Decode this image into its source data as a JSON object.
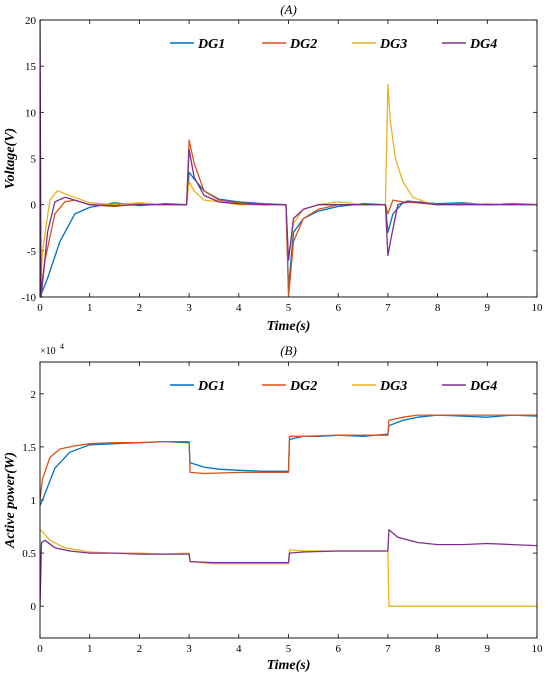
{
  "chart_data": [
    {
      "type": "line",
      "title": "(A)",
      "xlabel": "Time(s)",
      "ylabel": "Voltage(V)",
      "xlim": [
        0,
        10
      ],
      "ylim": [
        -10,
        20
      ],
      "xticks": [
        "0",
        "1",
        "2",
        "3",
        "4",
        "5",
        "6",
        "7",
        "8",
        "9",
        "10"
      ],
      "yticks": [
        "-10",
        "-5",
        "0",
        "5",
        "10",
        "15",
        "20"
      ],
      "legend_position": "top-right",
      "series": [
        {
          "name": "DG1",
          "color": "#0072BD",
          "x": [
            0,
            0.15,
            0.4,
            0.7,
            1.0,
            1.5,
            2.0,
            2.5,
            2.95,
            3.0,
            3.1,
            3.3,
            3.6,
            4.0,
            4.5,
            4.95,
            5.0,
            5.1,
            5.3,
            5.6,
            6.0,
            6.5,
            6.95,
            7.0,
            7.1,
            7.3,
            7.6,
            8.0,
            8.5,
            9.0,
            9.5,
            10.0
          ],
          "values": [
            -10,
            -8,
            -4,
            -1,
            -0.3,
            0.2,
            -0.1,
            0.1,
            0,
            3.5,
            2.8,
            1.5,
            0.6,
            0.3,
            0.1,
            0,
            -9,
            -3,
            -1.5,
            -0.7,
            -0.2,
            0.1,
            0,
            -3,
            -1,
            0.2,
            0.3,
            0.1,
            0.2,
            0,
            0.1,
            0
          ]
        },
        {
          "name": "DG2",
          "color": "#D95319",
          "x": [
            0,
            0.1,
            0.3,
            0.5,
            0.7,
            1.0,
            1.5,
            2.0,
            2.5,
            2.95,
            3.0,
            3.1,
            3.3,
            3.6,
            4.0,
            4.5,
            4.95,
            5.0,
            5.1,
            5.3,
            5.6,
            6.0,
            6.5,
            6.95,
            7.0,
            7.1,
            7.3,
            7.6,
            8.0,
            8.5,
            9.0,
            9.5,
            10.0
          ],
          "values": [
            -10,
            -6,
            -1,
            0.3,
            0.5,
            0,
            -0.2,
            0.1,
            0,
            0,
            7,
            4.5,
            1.5,
            0.5,
            0.2,
            0,
            0,
            -10,
            -4,
            -1.5,
            -0.5,
            0,
            0,
            0,
            -1,
            0.5,
            0.3,
            0.2,
            0,
            0.1,
            0,
            0.1,
            0
          ]
        },
        {
          "name": "DG3",
          "color": "#EDB120",
          "x": [
            0,
            0.05,
            0.2,
            0.35,
            0.5,
            0.7,
            1.0,
            1.5,
            2.0,
            2.5,
            2.95,
            3.0,
            3.1,
            3.3,
            3.6,
            4.0,
            4.5,
            4.95,
            5.0,
            5.1,
            5.3,
            5.6,
            6.0,
            6.5,
            6.95,
            7.0,
            7.05,
            7.15,
            7.3,
            7.5,
            7.8,
            8.0,
            8.5,
            9.0,
            9.5,
            10.0
          ],
          "values": [
            -10,
            -5,
            0.5,
            1.5,
            1.2,
            0.8,
            0.2,
            0,
            0.2,
            0,
            0,
            2.5,
            1.5,
            0.5,
            0.3,
            0,
            0,
            0,
            -6,
            -2,
            -0.5,
            0,
            0.3,
            0,
            0,
            13,
            9,
            5,
            2.5,
            0.8,
            0.2,
            0,
            0,
            0.1,
            0,
            0
          ]
        },
        {
          "name": "DG4",
          "color": "#7E2F8E",
          "x": [
            0,
            0.02,
            0.06,
            0.15,
            0.3,
            0.5,
            0.7,
            1.0,
            1.5,
            2.0,
            2.5,
            2.95,
            3.0,
            3.1,
            3.3,
            3.6,
            4.0,
            4.5,
            4.95,
            5.0,
            5.1,
            5.3,
            5.6,
            6.0,
            6.5,
            6.95,
            7.0,
            7.05,
            7.2,
            7.4,
            7.7,
            8.0,
            8.5,
            9.0,
            9.5,
            10.0
          ],
          "values": [
            20,
            -10,
            -8,
            -3,
            0.3,
            0.8,
            0.5,
            0,
            -0.1,
            0,
            0,
            0,
            6,
            3,
            1,
            0.3,
            0.1,
            0,
            0,
            -6,
            -1.5,
            -0.5,
            0,
            0,
            0,
            0,
            -5.5,
            -4,
            0,
            0.4,
            0.2,
            0,
            0,
            0,
            0,
            0
          ]
        }
      ]
    },
    {
      "type": "line",
      "title": "(B)",
      "xlabel": "Time(s)",
      "ylabel": "Active power(W)",
      "y_multiplier": "×10",
      "y_multiplier_exp": "4",
      "xlim": [
        0,
        10
      ],
      "ylim": [
        -0.3,
        2.3
      ],
      "xticks": [
        "0",
        "1",
        "2",
        "3",
        "4",
        "5",
        "6",
        "7",
        "8",
        "9",
        "10"
      ],
      "yticks": [
        "0",
        "0.5",
        "1",
        "1.5",
        "2"
      ],
      "legend_position": "top-right",
      "series": [
        {
          "name": "DG1",
          "color": "#0072BD",
          "x": [
            0,
            0.05,
            0.3,
            0.6,
            1.0,
            1.5,
            2.0,
            2.5,
            3.0,
            3.02,
            3.3,
            3.6,
            4.0,
            4.5,
            5.0,
            5.02,
            5.3,
            5.6,
            6.0,
            6.5,
            7.0,
            7.02,
            7.3,
            7.6,
            8.0,
            8.5,
            9.0,
            9.5,
            10.0
          ],
          "values": [
            0.95,
            1.0,
            1.3,
            1.45,
            1.52,
            1.53,
            1.54,
            1.55,
            1.54,
            1.35,
            1.31,
            1.29,
            1.28,
            1.27,
            1.27,
            1.57,
            1.6,
            1.6,
            1.61,
            1.6,
            1.62,
            1.7,
            1.75,
            1.78,
            1.8,
            1.79,
            1.78,
            1.8,
            1.79
          ]
        },
        {
          "name": "DG2",
          "color": "#D95319",
          "x": [
            0,
            0.05,
            0.2,
            0.4,
            0.7,
            1.0,
            1.5,
            2.0,
            2.5,
            3.0,
            3.02,
            3.3,
            4.0,
            4.5,
            5.0,
            5.02,
            5.3,
            6.0,
            6.5,
            7.0,
            7.02,
            7.3,
            7.6,
            8.0,
            8.5,
            9.0,
            9.5,
            10.0
          ],
          "values": [
            1.0,
            1.2,
            1.4,
            1.48,
            1.51,
            1.53,
            1.54,
            1.54,
            1.55,
            1.55,
            1.26,
            1.25,
            1.26,
            1.26,
            1.26,
            1.6,
            1.6,
            1.61,
            1.61,
            1.61,
            1.75,
            1.78,
            1.8,
            1.8,
            1.8,
            1.8,
            1.8,
            1.8
          ]
        },
        {
          "name": "DG3",
          "color": "#EDB120",
          "x": [
            0,
            0.05,
            0.2,
            0.5,
            1.0,
            1.5,
            2.0,
            2.5,
            3.0,
            3.02,
            3.5,
            4.0,
            4.5,
            5.0,
            5.02,
            5.3,
            6.0,
            6.5,
            7.0,
            7.02,
            7.5,
            8.0,
            9.0,
            10.0
          ],
          "values": [
            0.72,
            0.7,
            0.62,
            0.55,
            0.51,
            0.5,
            0.5,
            0.49,
            0.5,
            0.42,
            0.4,
            0.4,
            0.4,
            0.4,
            0.53,
            0.52,
            0.52,
            0.52,
            0.52,
            0.0,
            0.0,
            0.0,
            0.0,
            0.0
          ]
        },
        {
          "name": "DG4",
          "color": "#7E2F8E",
          "x": [
            0,
            0.03,
            0.1,
            0.3,
            0.6,
            1.0,
            1.5,
            2.0,
            2.5,
            3.0,
            3.02,
            3.5,
            4.0,
            4.5,
            5.0,
            5.02,
            5.3,
            6.0,
            6.5,
            7.0,
            7.02,
            7.2,
            7.6,
            8.0,
            8.5,
            9.0,
            9.5,
            10.0
          ],
          "values": [
            0,
            0.6,
            0.62,
            0.55,
            0.52,
            0.5,
            0.5,
            0.49,
            0.49,
            0.49,
            0.42,
            0.41,
            0.41,
            0.41,
            0.41,
            0.5,
            0.51,
            0.52,
            0.52,
            0.52,
            0.72,
            0.65,
            0.6,
            0.58,
            0.58,
            0.59,
            0.58,
            0.57
          ]
        }
      ]
    }
  ]
}
